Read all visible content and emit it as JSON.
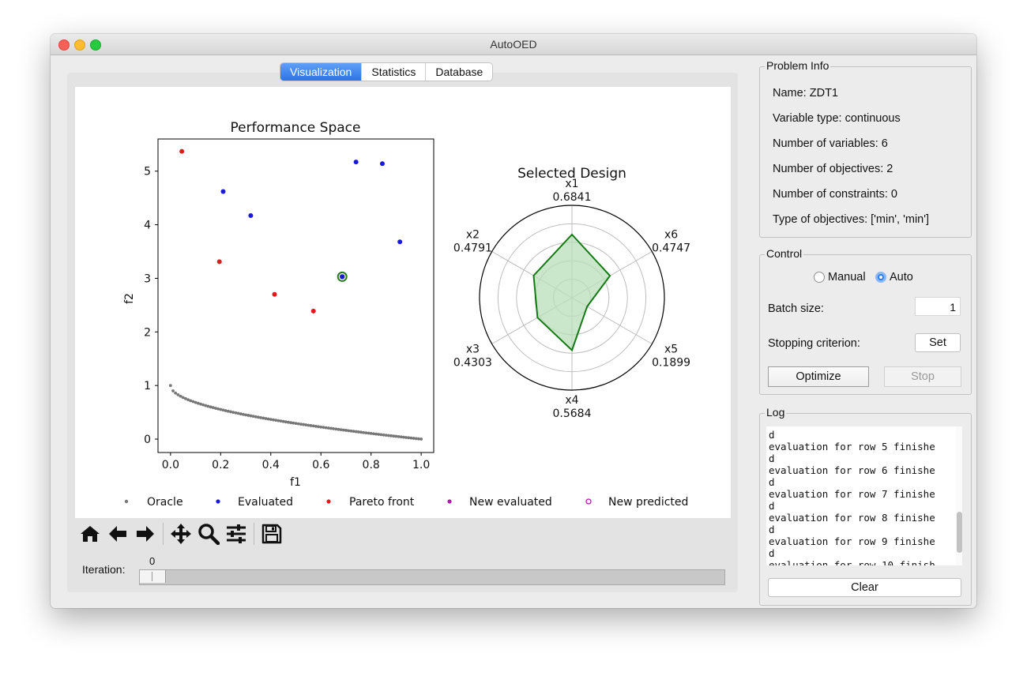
{
  "window": {
    "title": "AutoOED"
  },
  "tabs": [
    {
      "label": "Visualization",
      "active": true
    },
    {
      "label": "Statistics",
      "active": false
    },
    {
      "label": "Database",
      "active": false
    }
  ],
  "performance_chart": {
    "title": "Performance Space",
    "xlabel": "f1",
    "ylabel": "f2",
    "xticks": [
      "0.0",
      "0.2",
      "0.4",
      "0.6",
      "0.8",
      "1.0"
    ],
    "yticks": [
      "0",
      "1",
      "2",
      "3",
      "4",
      "5"
    ]
  },
  "radar_chart": {
    "title": "Selected Design",
    "axes": [
      {
        "name": "x1",
        "value": "0.6841"
      },
      {
        "name": "x6",
        "value": "0.4747"
      },
      {
        "name": "x5",
        "value": "0.1899"
      },
      {
        "name": "x4",
        "value": "0.5684"
      },
      {
        "name": "x3",
        "value": "0.4303"
      },
      {
        "name": "x2",
        "value": "0.4791"
      }
    ]
  },
  "legend": [
    {
      "label": "Oracle",
      "color": "#777777",
      "style": "small-dot"
    },
    {
      "label": "Evaluated",
      "color": "#1a1adb",
      "style": "dot"
    },
    {
      "label": "Pareto front",
      "color": "#e01b1b",
      "style": "dot"
    },
    {
      "label": "New evaluated",
      "color": "#b01ab0",
      "style": "dot"
    },
    {
      "label": "New predicted",
      "color": "#b01ab0",
      "style": "ring"
    }
  ],
  "chart_data": [
    {
      "type": "scatter",
      "title": "Performance Space",
      "xlabel": "f1",
      "ylabel": "f2",
      "xlim": [
        -0.05,
        1.05
      ],
      "ylim": [
        -0.25,
        5.6
      ],
      "grid": false,
      "legend_position": "bottom",
      "series": [
        {
          "name": "Oracle",
          "color": "#777777",
          "function": "f2 = 1 - sqrt(f1)"
        },
        {
          "name": "Evaluated",
          "color": "#1a1adb",
          "points": [
            [
              0.21,
              4.62
            ],
            [
              0.32,
              4.17
            ],
            [
              0.74,
              5.17
            ],
            [
              0.845,
              5.14
            ],
            [
              0.915,
              3.68
            ]
          ]
        },
        {
          "name": "Pareto front",
          "color": "#e01b1b",
          "points": [
            [
              0.045,
              5.37
            ],
            [
              0.195,
              3.31
            ],
            [
              0.415,
              2.7
            ],
            [
              0.57,
              2.39
            ]
          ]
        },
        {
          "name": "Selected",
          "color": "#1a1adb",
          "points": [
            [
              0.685,
              3.03
            ]
          ]
        }
      ]
    },
    {
      "type": "radar",
      "title": "Selected Design",
      "categories": [
        "x1",
        "x6",
        "x5",
        "x4",
        "x3",
        "x2"
      ],
      "values": [
        0.6841,
        0.4747,
        0.1899,
        0.5684,
        0.4303,
        0.4791
      ],
      "range": [
        0,
        1
      ],
      "fill_color": "#b9dfb9",
      "line_color": "#137a13"
    }
  ],
  "toolbar": {
    "icons": [
      "home-icon",
      "back-arrow-icon",
      "forward-arrow-icon",
      "pan-icon",
      "zoom-icon",
      "configure-subplots-icon",
      "save-icon"
    ]
  },
  "iteration": {
    "label": "Iteration:",
    "value": "0",
    "level": 0
  },
  "problem_info": {
    "title": "Problem Info",
    "lines": [
      "Name: ZDT1",
      "Variable type: continuous",
      "Number of variables: 6",
      "Number of objectives: 2",
      "Number of constraints: 0",
      "Type of objectives: ['min', 'min']"
    ]
  },
  "control": {
    "title": "Control",
    "manual_label": "Manual",
    "auto_label": "Auto",
    "mode": "Auto",
    "batch_size_label": "Batch size:",
    "batch_size_value": "1",
    "stopping_label": "Stopping criterion:",
    "set_label": "Set",
    "optimize_label": "Optimize",
    "stop_label": "Stop"
  },
  "log": {
    "title": "Log",
    "text": "d\nevaluation for row 5 finishe\nd\nevaluation for row 6 finishe\nd\nevaluation for row 7 finishe\nd\nevaluation for row 8 finishe\nd\nevaluation for row 9 finishe\nd\nevaluation for row 10 finish",
    "clear_label": "Clear"
  }
}
